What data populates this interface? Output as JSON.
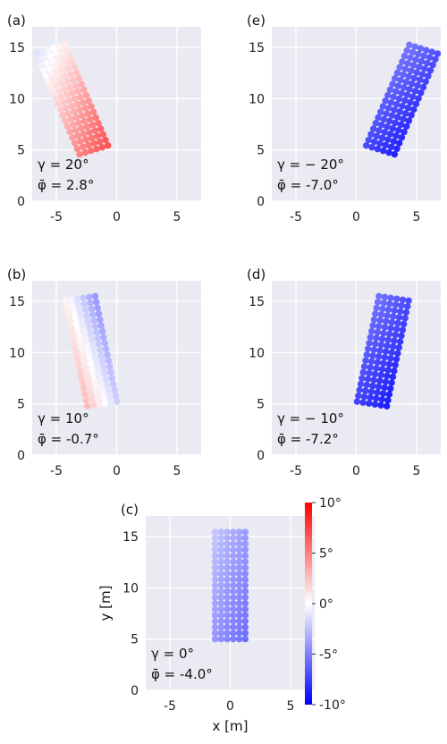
{
  "chart_data": {
    "type": "scatter",
    "xlabel": "x [m]",
    "ylabel": "y [m]",
    "xlim": [
      -7,
      7
    ],
    "ylim": [
      0,
      17
    ],
    "xticks": [
      "-5",
      "0",
      "5"
    ],
    "yticks": [
      "0",
      "5",
      "10",
      "15"
    ],
    "grid": true,
    "panels": [
      {
        "id": "a",
        "label": "(a)",
        "gamma_text": "γ = 20°",
        "phibar_text": "φ̄ = 2.8°",
        "gamma": 20,
        "phi_mean": 2.8,
        "start": [
          -1.9,
          5.0
        ],
        "width_cols": 6,
        "length_rows": 19
      },
      {
        "id": "e",
        "label": "(e)",
        "gamma_text": "γ = − 20°",
        "phibar_text": "φ̄ = -7.0°",
        "gamma": -20,
        "phi_mean": -7.0,
        "start": [
          2.0,
          5.0
        ],
        "width_cols": 6,
        "length_rows": 19
      },
      {
        "id": "b",
        "label": "(b)",
        "gamma_text": "γ = 10°",
        "phibar_text": "φ̄ = -0.7°",
        "gamma": 10,
        "phi_mean": -0.7,
        "start": [
          -1.2,
          5.0
        ],
        "width_cols": 6,
        "length_rows": 19
      },
      {
        "id": "d",
        "label": "(d)",
        "gamma_text": "γ = − 10°",
        "phibar_text": "φ̄ = -7.2°",
        "gamma": -10,
        "phi_mean": -7.2,
        "start": [
          1.3,
          5.0
        ],
        "width_cols": 6,
        "length_rows": 19
      },
      {
        "id": "c",
        "label": "(c)",
        "gamma_text": "γ = 0°",
        "phibar_text": "φ̄ = -4.0°",
        "gamma": 0,
        "phi_mean": -4.0,
        "start": [
          0.0,
          5.0
        ],
        "width_cols": 6,
        "length_rows": 19
      }
    ],
    "colorbar": {
      "min": -10,
      "max": 10,
      "ticks": [
        "10°",
        "5°",
        "0°",
        "-5°",
        "-10°"
      ],
      "colors": {
        "low": "#0000ff",
        "mid": "#ffffff",
        "high": "#ff0000"
      }
    }
  },
  "colors": {
    "axes_bg": "#eaeaf2",
    "grid": "#ffffff"
  }
}
